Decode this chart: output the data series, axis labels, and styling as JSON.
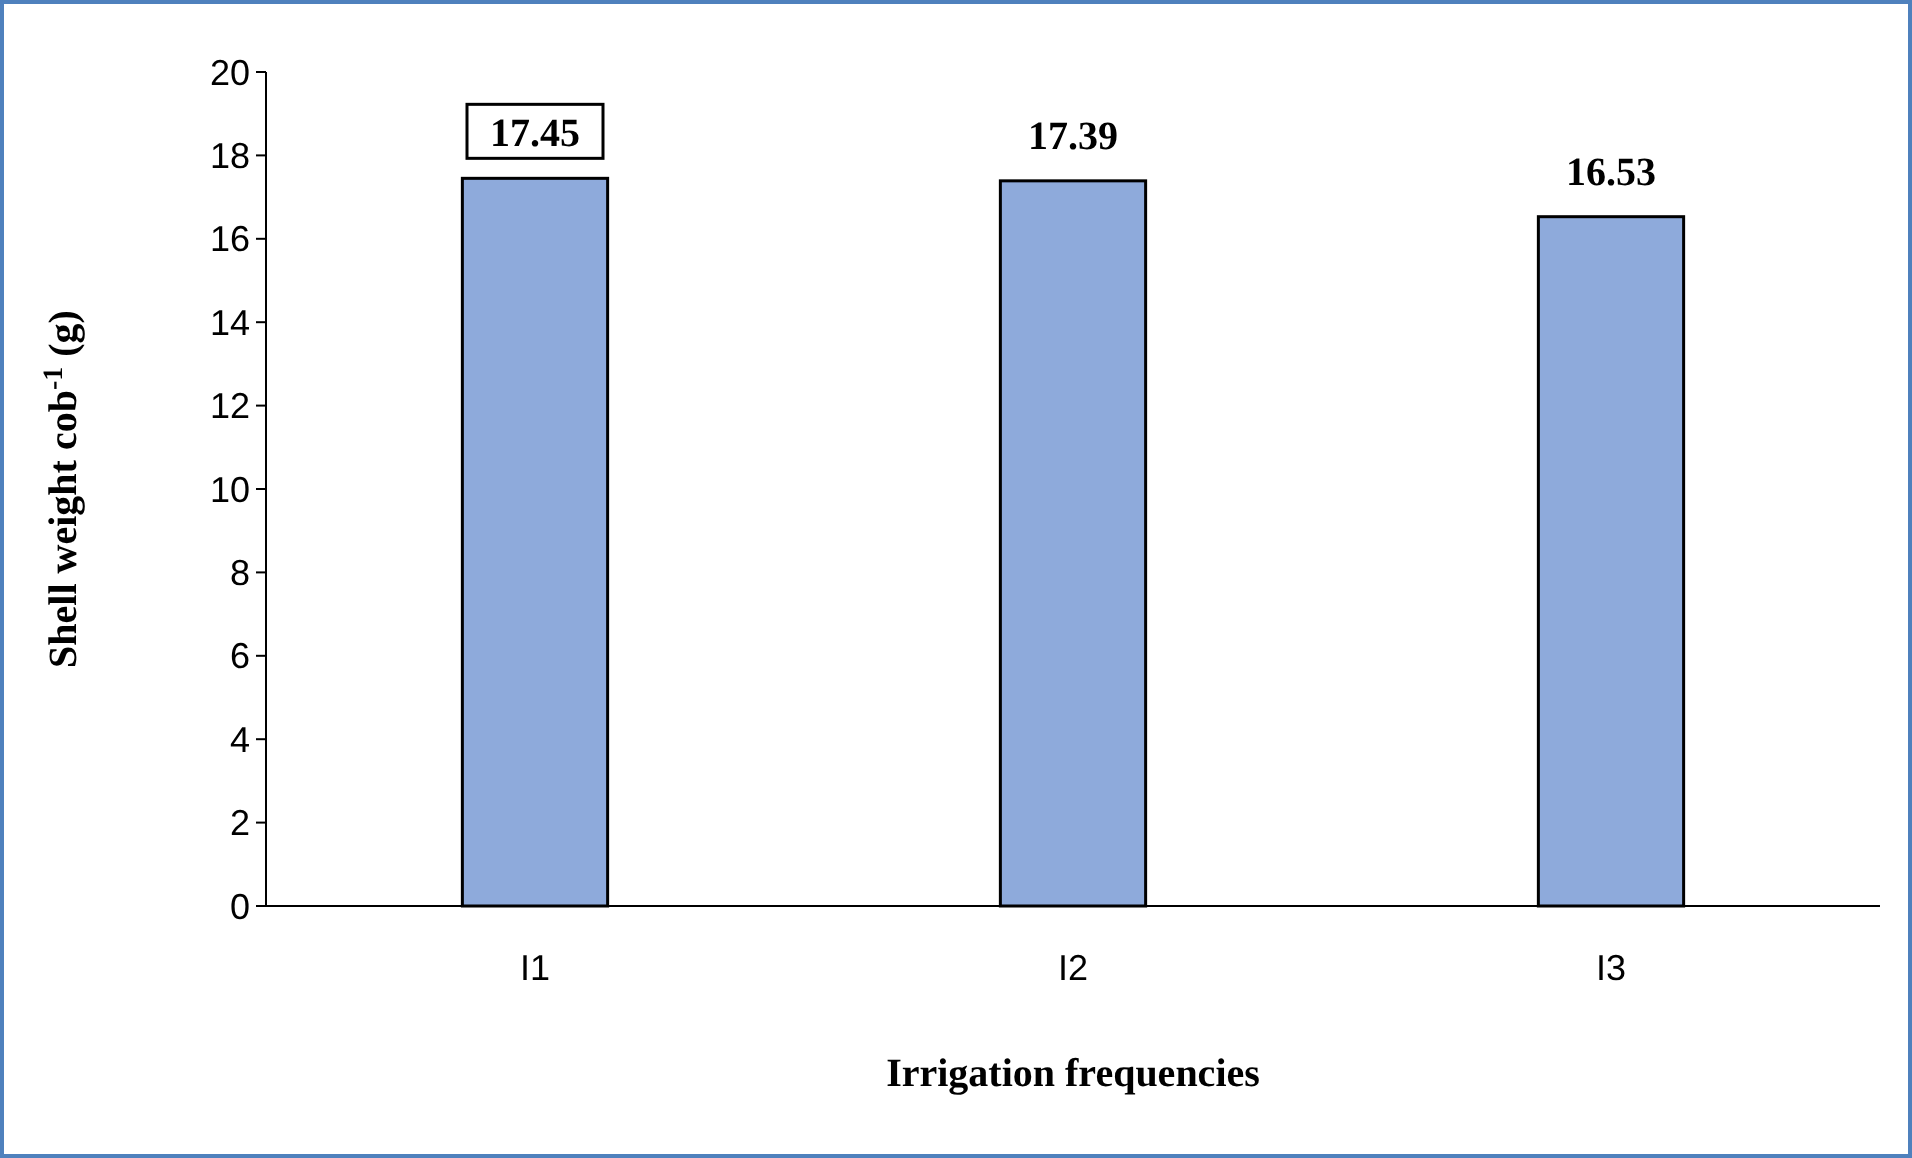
{
  "chart_data": {
    "type": "bar",
    "xlabel": "Irrigation frequencies",
    "ylabel": "Shell weight cob$^{-1}$ (g)",
    "categories": [
      "I1",
      "I2",
      "I3"
    ],
    "values": [
      17.45,
      17.39,
      16.53
    ],
    "color": "#8eaadb",
    "ylim": [
      0,
      20
    ],
    "yticks": [
      0,
      2,
      4,
      6,
      8,
      10,
      12,
      14,
      16,
      18,
      20
    ],
    "data_labels": true,
    "grid": false
  }
}
